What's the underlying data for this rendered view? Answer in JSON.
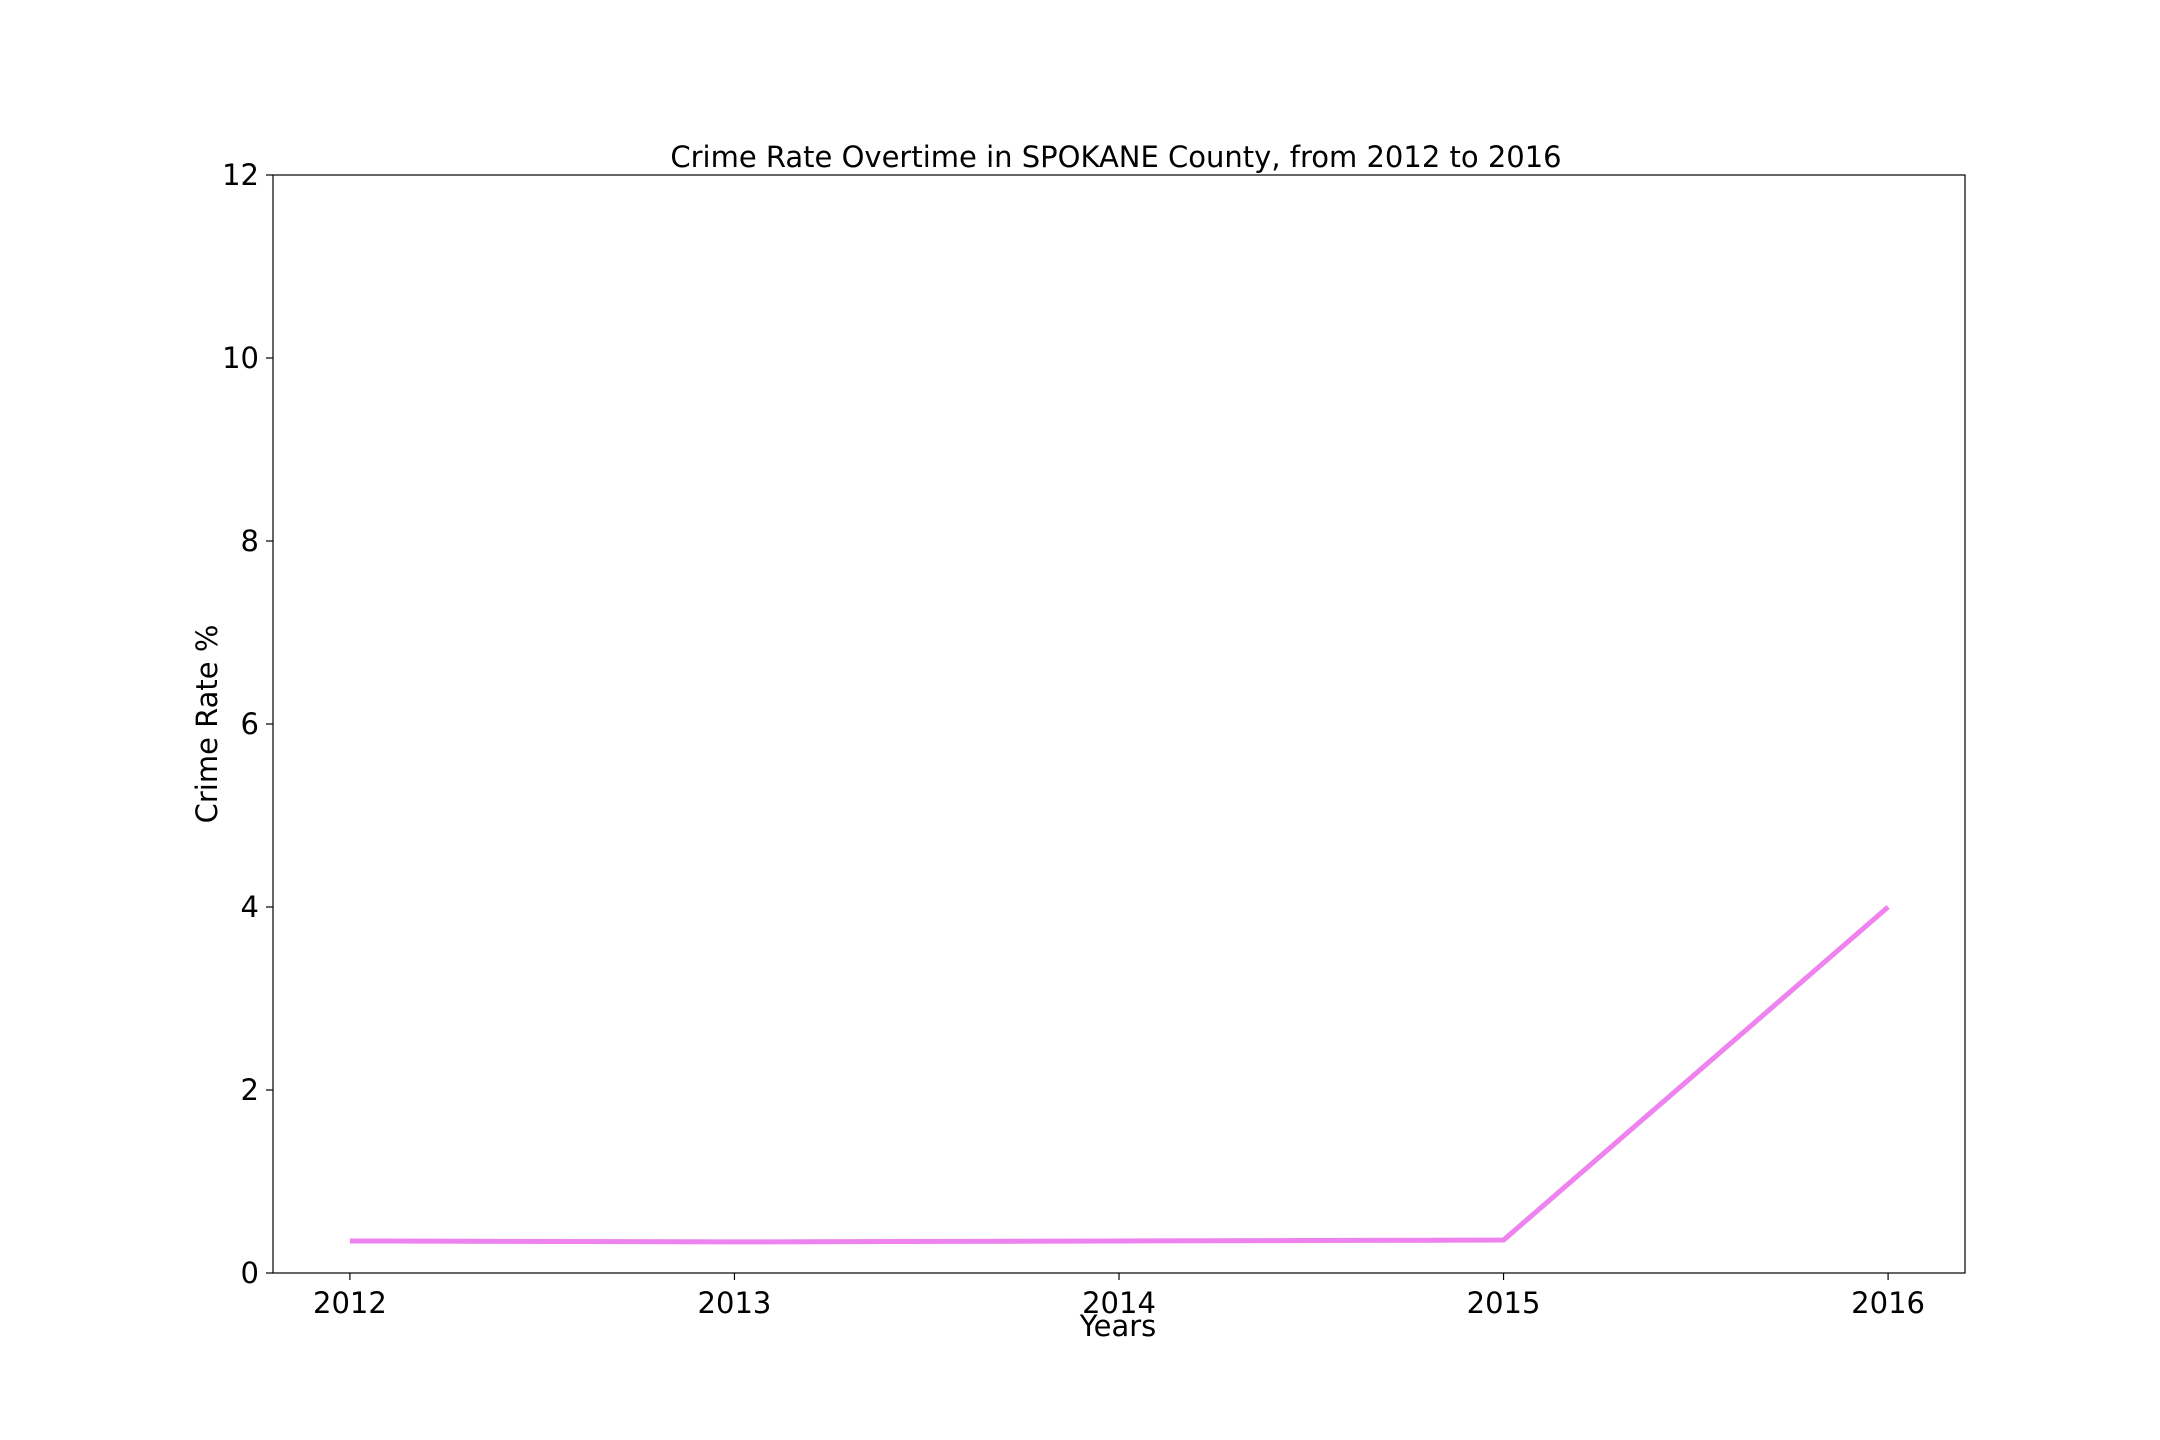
{
  "chart_data": {
    "type": "line",
    "title": "Crime Rate Overtime in SPOKANE County, from 2012 to 2016",
    "xlabel": "Years",
    "ylabel": "Crime Rate %",
    "x": [
      2012,
      2013,
      2014,
      2015,
      2016
    ],
    "x_tick_labels": [
      "2012",
      "2013",
      "2014",
      "2015",
      "2016"
    ],
    "xlim": [
      2011.8,
      2016.2
    ],
    "ylim": [
      0,
      12
    ],
    "y_ticks": [
      0,
      2,
      4,
      6,
      8,
      10,
      12
    ],
    "y_tick_labels": [
      "0",
      "2",
      "4",
      "6",
      "8",
      "10",
      "12"
    ],
    "grid": false,
    "series": [
      {
        "values": [
          0.35,
          0.34,
          0.35,
          0.36,
          4.0
        ],
        "color": "#ee82ee"
      }
    ]
  }
}
